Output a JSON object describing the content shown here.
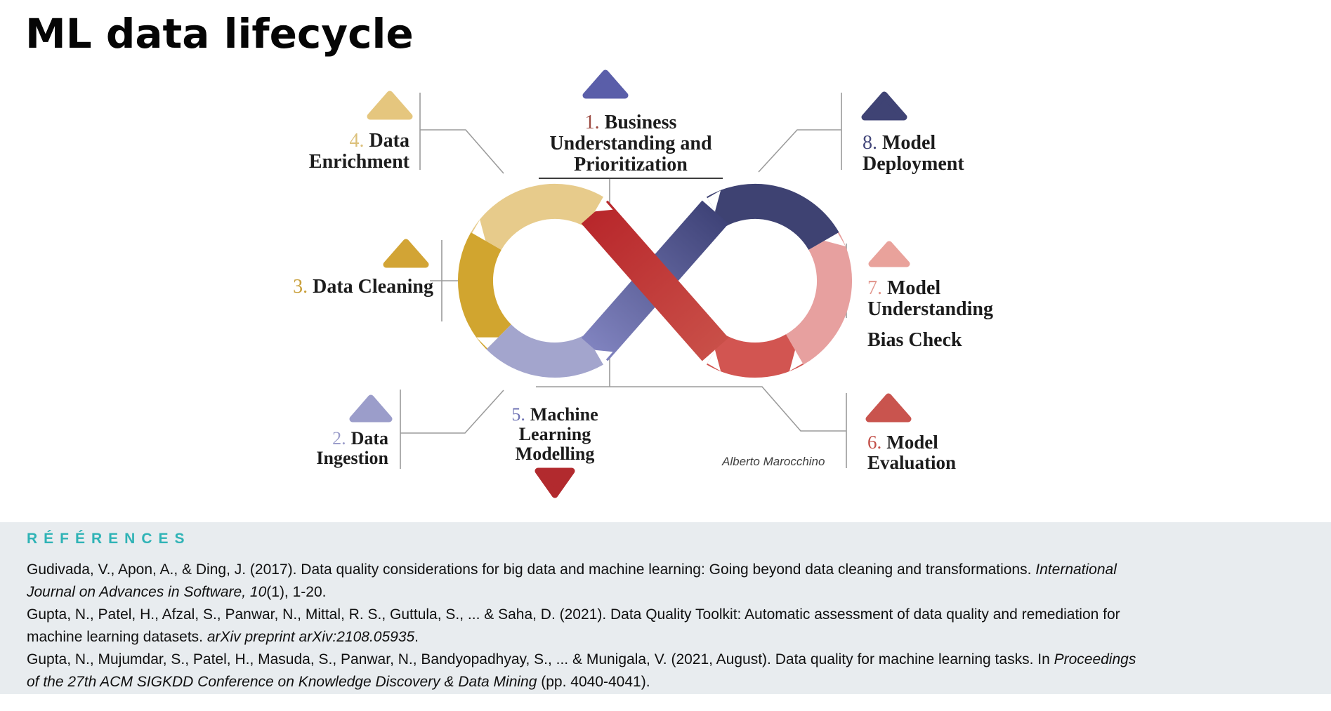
{
  "page": {
    "title": "ML data lifecycle"
  },
  "diagram": {
    "credit": "Alberto Marocchino",
    "stages": [
      {
        "num": "1.",
        "num_color": "#9c4a42",
        "tri_color": "#5a5ea9",
        "lines": [
          "Business",
          "Understanding and",
          "Prioritization"
        ]
      },
      {
        "num": "2.",
        "num_color": "#9b9dca",
        "tri_color": "#9b9dca",
        "lines": [
          "Data",
          "Ingestion"
        ]
      },
      {
        "num": "3.",
        "num_color": "#c9a03c",
        "tri_color": "#d2a435",
        "lines": [
          "Data Cleaning"
        ]
      },
      {
        "num": "4.",
        "num_color": "#dcc07a",
        "tri_color": "#e5c67e",
        "lines": [
          "Data",
          "Enrichment"
        ]
      },
      {
        "num": "5.",
        "num_color": "#6f73b4",
        "tri_color": "#b22a2e",
        "lines": [
          "Machine",
          "Learning",
          "Modelling"
        ]
      },
      {
        "num": "6.",
        "num_color": "#c24f48",
        "tri_color": "#c9544e",
        "lines": [
          "Model",
          "Evaluation"
        ]
      },
      {
        "num": "7.",
        "num_color": "#e2988f",
        "tri_color": "#e9a29b",
        "lines": [
          "Model",
          "Understanding",
          "Bias Check"
        ]
      },
      {
        "num": "8.",
        "num_color": "#43477a",
        "tri_color": "#3f4374",
        "lines": [
          "Model",
          "Deployment"
        ]
      }
    ],
    "loop_colors": {
      "enrichment_tan": "#e7cb8b",
      "cleaning_gold": "#d1a52f",
      "ingestion_lavender": "#a3a5cd",
      "band_blue_light": "#8083bf",
      "band_blue_dark": "#3f4378",
      "deployment_navy": "#3e4272",
      "bias_pink": "#e7a09f",
      "evaluation_red": "#d25551",
      "band_red_dark": "#b8272b",
      "band_red_light": "#c94f48"
    }
  },
  "references": {
    "heading": "RÉFÉRENCES",
    "background": "#e8ecef",
    "heading_color": "#2fb3b6",
    "items": [
      {
        "segments": [
          {
            "t": "Gudivada, V., Apon, A., & Ding, J. (2017). Data quality considerations for big data and machine learning: Going beyond data cleaning and transformations. ",
            "i": 0
          },
          {
            "t": "International",
            "i": 1
          },
          {
            "br": 1
          },
          {
            "t": "Journal on Advances in Software, 10",
            "i": 1
          },
          {
            "t": "(1), 1-20.",
            "i": 0
          }
        ]
      },
      {
        "segments": [
          {
            "t": "Gupta, N., Patel, H., Afzal, S., Panwar, N., Mittal, R. S., Guttula, S., ... & Saha, D. (2021). Data Quality Toolkit: Automatic assessment of data quality and remediation for",
            "i": 0
          },
          {
            "br": 1
          },
          {
            "t": "machine learning datasets. ",
            "i": 0
          },
          {
            "t": "arXiv preprint arXiv:2108.05935",
            "i": 1
          },
          {
            "t": ".",
            "i": 0
          }
        ]
      },
      {
        "segments": [
          {
            "t": "Gupta, N., Mujumdar, S., Patel, H., Masuda, S., Panwar, N., Bandyopadhyay, S., ... & Munigala, V. (2021, August). Data quality for machine learning tasks. In ",
            "i": 0
          },
          {
            "t": "Proceedings",
            "i": 1
          },
          {
            "br": 1
          },
          {
            "t": "of the 27th ACM SIGKDD Conference on Knowledge Discovery & Data Mining",
            "i": 1
          },
          {
            "t": " (pp. 4040-4041).",
            "i": 0
          }
        ]
      }
    ]
  }
}
